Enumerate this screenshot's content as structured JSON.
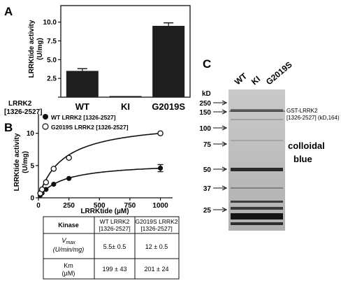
{
  "panel_labels": {
    "a": "A",
    "b": "B",
    "c": "C"
  },
  "panel_a": {
    "chart_data": {
      "type": "bar",
      "ylabel_line1": "LRRKtide activity",
      "ylabel_line2": "(U/mg)",
      "construct_label_line1": "LRRK2",
      "construct_label_line2": "[1326-2527]",
      "categories": [
        "WT",
        "KI",
        "G2019S"
      ],
      "values": [
        3.5,
        0.15,
        9.5
      ],
      "errors": [
        0.3,
        0.05,
        0.4
      ],
      "yticks": [
        0,
        2.5,
        5.0,
        7.5,
        10.0
      ],
      "ytick_labels": [
        "0",
        "2.5",
        "5.0",
        "7.5",
        "10.0"
      ],
      "ylim": [
        0,
        12.2
      ],
      "bar_color": "#1e1e1e"
    }
  },
  "panel_b": {
    "chart_data": {
      "type": "scatter",
      "ylabel_line1": "LRRKtide activity",
      "ylabel_line2": "(U/mg)",
      "xlabel": "LRRKtide (µM)",
      "xlim": [
        0,
        1100
      ],
      "ylim": [
        0,
        13
      ],
      "xticks": [
        0,
        250,
        500,
        750,
        1000
      ],
      "xtick_labels": [
        "0",
        "250",
        "500",
        "750",
        "1000"
      ],
      "yticks": [
        0,
        5,
        10
      ],
      "ytick_labels": [
        "0",
        "5",
        "10"
      ],
      "legend_placement": "top-left",
      "series": [
        {
          "name": "WT LRRK2 [1326-2527]",
          "marker": "filled",
          "x": [
            15,
            30,
            62,
            125,
            250,
            1000
          ],
          "y": [
            0.4,
            0.75,
            1.3,
            2.1,
            3.0,
            4.6
          ],
          "vmax": 5.5,
          "km": 199
        },
        {
          "name": "G2019S LRRK2 [1326-2527]",
          "marker": "open",
          "x": [
            15,
            30,
            62,
            125,
            250,
            1000
          ],
          "y": [
            0.7,
            1.3,
            2.4,
            4.5,
            6.2,
            10.0
          ],
          "vmax": 12,
          "km": 201
        }
      ]
    },
    "table": {
      "header": [
        "Kinase",
        "WT LRRK2 [1326-2527]",
        "G2019S LRRK2 [1326-2527]"
      ],
      "vmax_label": "V",
      "vmax_sub": "max",
      "vmax_units": "(U/min/mg)",
      "km_label": "Km",
      "km_units": "(µM)",
      "vmax_values": [
        "5.5± 0.5",
        "12 ± 0.5"
      ],
      "km_values": [
        "199 ± 43",
        "201 ± 24"
      ]
    }
  },
  "panel_c": {
    "lane_labels": [
      "WT",
      "KI",
      "G2019S"
    ],
    "kd_label": "kD",
    "markers": [
      "250",
      "150",
      "100",
      "75",
      "50",
      "37",
      "25"
    ],
    "band_label_line1": "GST-LRRK2",
    "band_label_line2": "[1326-2527] (kD,164)",
    "stain_label_line1": "colloidal",
    "stain_label_line2": "blue"
  }
}
